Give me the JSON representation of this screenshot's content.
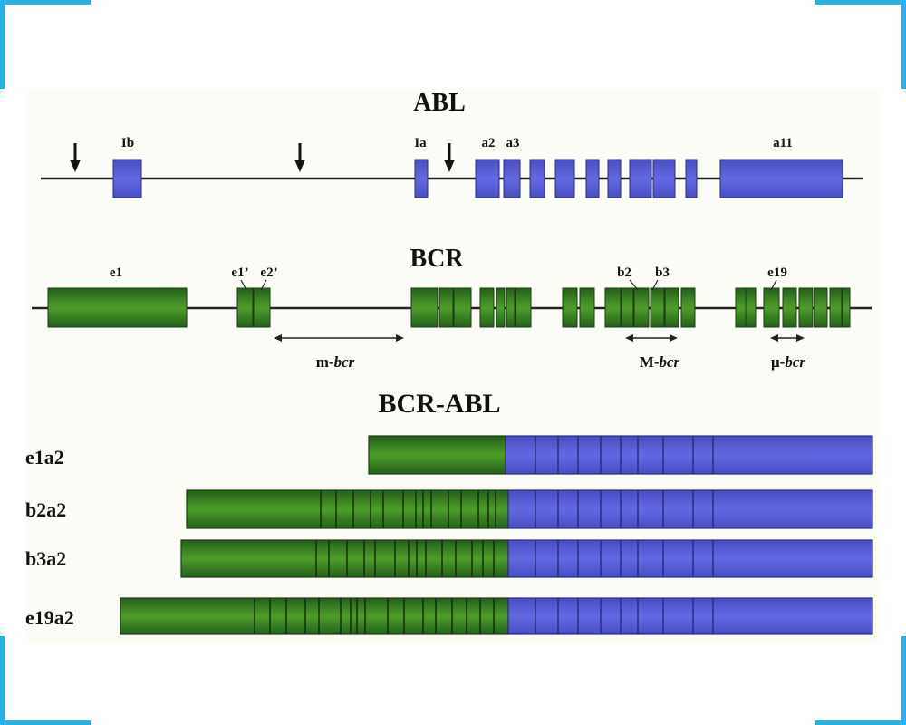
{
  "colors": {
    "abl": "#5b5fd6",
    "bcr": "#3f8f1f",
    "frame": "#29b0e8",
    "line": "#222222"
  },
  "abl": {
    "title": "ABL",
    "labels": {
      "ib": "Ib",
      "ia": "Ia",
      "a2": "a2",
      "a3": "a3",
      "a11": "a11"
    }
  },
  "bcr": {
    "title": "BCR",
    "labels": {
      "e1": "e1",
      "e1p": "e1’",
      "e2p": "e2’",
      "b2": "b2",
      "b3": "b3",
      "e19": "e19"
    },
    "regions": {
      "m": {
        "prefix": "m-",
        "italic": "bcr"
      },
      "M": {
        "prefix": "M-",
        "italic": "bcr"
      },
      "mu": {
        "prefix": "μ-",
        "italic": "bcr"
      }
    }
  },
  "fusion": {
    "title": "BCR-ABL",
    "rows": [
      {
        "label": "e1a2"
      },
      {
        "label": "b2a2"
      },
      {
        "label": "b3a2"
      },
      {
        "label": "e19a2"
      }
    ]
  }
}
